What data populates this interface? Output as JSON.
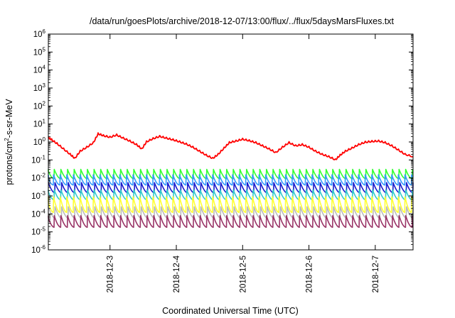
{
  "chart_data": {
    "type": "line",
    "title": "/data/run/goesPlots/archive/2018-12-07/13:00/flux/../flux/5daysMarsFluxes.txt",
    "xlabel": "Coordinated Universal Time (UTC)",
    "ylabel_parts": [
      "protons/cm",
      "2",
      "-s-sr-MeV"
    ],
    "yscale": "log",
    "ylim_exp": [
      -6,
      6
    ],
    "ytick_exponents": [
      -6,
      -5,
      -4,
      -3,
      -2,
      -1,
      0,
      1,
      2,
      3,
      4,
      5,
      6
    ],
    "ytick_base": "10",
    "xlim": [
      2.07,
      7.57
    ],
    "x_unit": "day of 2018-12",
    "xticks": [
      {
        "x": 3,
        "label": "2018-12-3"
      },
      {
        "x": 4,
        "label": "2018-12-4"
      },
      {
        "x": 5,
        "label": "2018-12-5"
      },
      {
        "x": 6,
        "label": "2018-12-6"
      },
      {
        "x": 7,
        "label": "2018-12-7"
      }
    ],
    "grid": false,
    "legend": "none",
    "sawtooth_period_days": 0.1,
    "series": [
      {
        "color": "#ff0000",
        "kind": "envelope",
        "x": [
          2.07,
          2.12,
          2.2,
          2.3,
          2.4,
          2.47,
          2.55,
          2.65,
          2.75,
          2.82,
          2.9,
          3.0,
          3.1,
          3.2,
          3.3,
          3.4,
          3.48,
          3.55,
          3.65,
          3.75,
          3.85,
          3.95,
          4.05,
          4.15,
          4.25,
          4.35,
          4.45,
          4.55,
          4.63,
          4.72,
          4.8,
          4.9,
          5.0,
          5.1,
          5.2,
          5.3,
          5.4,
          5.5,
          5.6,
          5.7,
          5.8,
          5.9,
          6.0,
          6.1,
          6.2,
          6.3,
          6.4,
          6.47,
          6.55,
          6.65,
          6.75,
          6.85,
          6.95,
          7.05,
          7.15,
          7.25,
          7.35,
          7.45,
          7.57
        ],
        "y": [
          1.7,
          1.3,
          0.8,
          0.4,
          0.2,
          0.12,
          0.3,
          0.5,
          0.9,
          2.8,
          2.2,
          1.8,
          2.4,
          1.6,
          1.1,
          0.7,
          0.4,
          1.0,
          1.5,
          2.0,
          1.6,
          1.3,
          1.0,
          0.75,
          0.5,
          0.3,
          0.18,
          0.12,
          0.2,
          0.45,
          0.9,
          1.1,
          1.4,
          1.15,
          0.9,
          0.6,
          0.4,
          0.25,
          0.5,
          0.9,
          0.6,
          0.7,
          0.5,
          0.3,
          0.2,
          0.15,
          0.1,
          0.18,
          0.3,
          0.45,
          0.7,
          0.95,
          1.05,
          1.1,
          0.9,
          0.6,
          0.35,
          0.2,
          0.15
        ],
        "width": 1.8
      },
      {
        "color": "#33ff33",
        "kind": "sawtooth",
        "peak": 0.03,
        "trough": 0.009
      },
      {
        "color": "#3399ff",
        "kind": "sawtooth",
        "peak": 0.015,
        "trough": 0.004
      },
      {
        "color": "#1a1acc",
        "kind": "sawtooth",
        "peak": 0.0055,
        "trough": 0.0015
      },
      {
        "color": "#33cccc",
        "kind": "sawtooth",
        "peak": 0.0022,
        "trough": 0.0006
      },
      {
        "color": "#ffff33",
        "kind": "sawtooth",
        "peak": 0.0009,
        "trough": 0.00012
      },
      {
        "color": "#bbbbbb",
        "kind": "sawtooth",
        "peak": 0.00025,
        "trough": 6e-05
      },
      {
        "color": "#993366",
        "kind": "sawtooth",
        "peak": 8e-05,
        "trough": 1.8e-05
      }
    ]
  }
}
